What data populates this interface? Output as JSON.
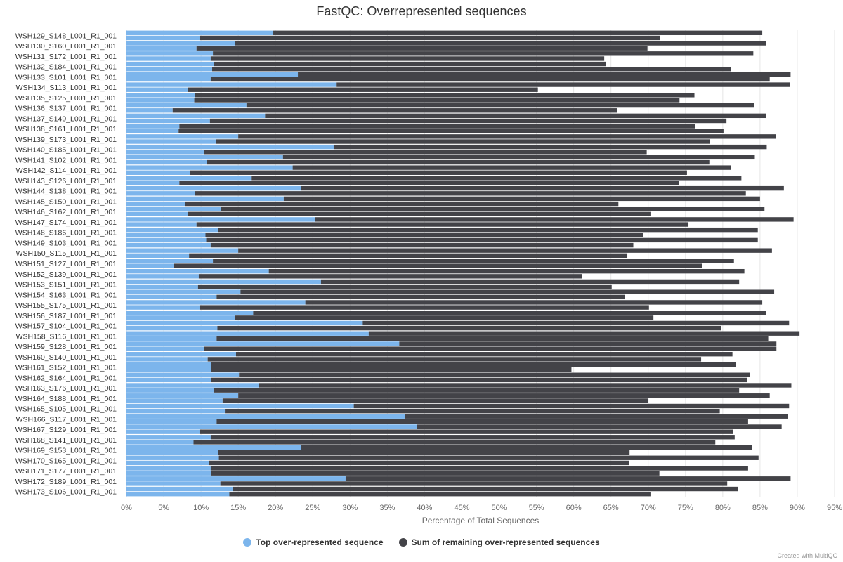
{
  "title": "FastQC: Overrepresented sequences",
  "credit": "Created with MultiQC",
  "colors": {
    "top": "#7cb5ec",
    "remaining": "#434348",
    "grid": "#e6e6e6",
    "axis": "#ccd6eb"
  },
  "legend": {
    "top": "Top over-represented sequence",
    "remaining": "Sum of remaining over-represented sequences"
  },
  "chart_data": {
    "type": "bar",
    "orientation": "horizontal",
    "stacked": true,
    "xlabel": "Percentage of Total Sequences",
    "xlim": [
      0,
      95
    ],
    "xticks": [
      "0%",
      "5%",
      "10%",
      "15%",
      "20%",
      "25%",
      "30%",
      "35%",
      "40%",
      "45%",
      "50%",
      "55%",
      "60%",
      "65%",
      "70%",
      "75%",
      "80%",
      "85%",
      "90%",
      "95%"
    ],
    "legend_position": "bottom-center",
    "grid": true,
    "categories": [
      "WSH129_S148_L001_R1_001",
      "WSH130_S160_L001_R1_001",
      "WSH131_S172_L001_R1_001",
      "WSH132_S184_L001_R1_001",
      "WSH133_S101_L001_R1_001",
      "WSH134_S113_L001_R1_001",
      "WSH135_S125_L001_R1_001",
      "WSH136_S137_L001_R1_001",
      "WSH137_S149_L001_R1_001",
      "WSH138_S161_L001_R1_001",
      "WSH139_S173_L001_R1_001",
      "WSH140_S185_L001_R1_001",
      "WSH141_S102_L001_R1_001",
      "WSH142_S114_L001_R1_001",
      "WSH143_S126_L001_R1_001",
      "WSH144_S138_L001_R1_001",
      "WSH145_S150_L001_R1_001",
      "WSH146_S162_L001_R1_001",
      "WSH147_S174_L001_R1_001",
      "WSH148_S186_L001_R1_001",
      "WSH149_S103_L001_R1_001",
      "WSH150_S115_L001_R1_001",
      "WSH151_S127_L001_R1_001",
      "WSH152_S139_L001_R1_001",
      "WSH153_S151_L001_R1_001",
      "WSH154_S163_L001_R1_001",
      "WSH155_S175_L001_R1_001",
      "WSH156_S187_L001_R1_001",
      "WSH157_S104_L001_R1_001",
      "WSH158_S116_L001_R1_001",
      "WSH159_S128_L001_R1_001",
      "WSH160_S140_L001_R1_001",
      "WSH161_S152_L001_R1_001",
      "WSH162_S164_L001_R1_001",
      "WSH163_S176_L001_R1_001",
      "WSH164_S188_L001_R1_001",
      "WSH165_S105_L001_R1_001",
      "WSH166_S117_L001_R1_001",
      "WSH167_S129_L001_R1_001",
      "WSH168_S141_L001_R1_001",
      "WSH169_S153_L001_R1_001",
      "WSH170_S165_L001_R1_001",
      "WSH171_S177_L001_R1_001",
      "WSH172_S189_L001_R1_001",
      "WSH173_S106_L001_R1_001"
    ],
    "series": [
      {
        "name": "Top over-represented sequence",
        "values": [
          19.7,
          14.6,
          11.6,
          11.7,
          23.0,
          28.2,
          9.2,
          16.1,
          18.6,
          7.1,
          15.0,
          27.8,
          21.0,
          22.3,
          16.8,
          23.4,
          21.1,
          12.7,
          25.3,
          12.3,
          10.7,
          15.0,
          11.6,
          19.1,
          26.1,
          15.3,
          24.0,
          17.0,
          31.7,
          32.5,
          36.6,
          14.7,
          11.4,
          15.1,
          17.8,
          15.0,
          30.5,
          37.4,
          39.0,
          11.3,
          23.4,
          12.4,
          11.3,
          29.4,
          14.3
        ],
        "values_lower_bar": [
          9.8,
          9.4,
          11.3,
          11.5,
          11.3,
          8.2,
          9.1,
          6.2,
          11.2,
          7.0,
          12.0,
          10.4,
          10.8,
          8.5,
          7.1,
          9.2,
          7.9,
          8.2,
          9.4,
          10.6,
          11.3,
          8.4,
          6.4,
          9.7,
          9.6,
          12.1,
          9.8,
          14.6,
          12.2,
          12.1,
          10.4,
          10.9,
          11.4,
          11.4,
          11.7,
          12.9,
          13.2,
          12.1,
          9.8,
          9.0,
          12.3,
          11.1,
          11.4,
          12.6,
          13.8
        ]
      },
      {
        "name": "Sum of remaining over-represented sequences",
        "values": [
          65.6,
          71.2,
          72.5,
          52.6,
          66.1,
          60.8,
          67.0,
          68.1,
          67.2,
          69.2,
          72.1,
          58.1,
          63.3,
          58.8,
          65.7,
          64.8,
          63.9,
          72.9,
          64.2,
          72.4,
          74.0,
          71.6,
          69.9,
          63.8,
          56.1,
          71.6,
          61.3,
          68.8,
          57.2,
          57.8,
          50.6,
          66.6,
          70.4,
          68.5,
          71.4,
          71.3,
          58.4,
          51.3,
          48.9,
          70.3,
          60.5,
          72.4,
          72.1,
          59.7,
          67.7
        ],
        "values_lower_bar": [
          61.8,
          60.5,
          52.8,
          69.6,
          75.0,
          47.0,
          65.1,
          59.6,
          69.3,
          73.1,
          66.3,
          59.4,
          67.4,
          66.7,
          67.0,
          73.9,
          58.1,
          62.1,
          66.0,
          58.7,
          56.7,
          58.8,
          70.8,
          51.4,
          55.5,
          54.8,
          60.3,
          56.1,
          67.6,
          74.0,
          76.8,
          66.2,
          48.3,
          71.9,
          70.5,
          57.1,
          66.4,
          71.3,
          71.6,
          70.0,
          55.2,
          56.3,
          60.1,
          68.0,
          56.5
        ]
      }
    ]
  }
}
